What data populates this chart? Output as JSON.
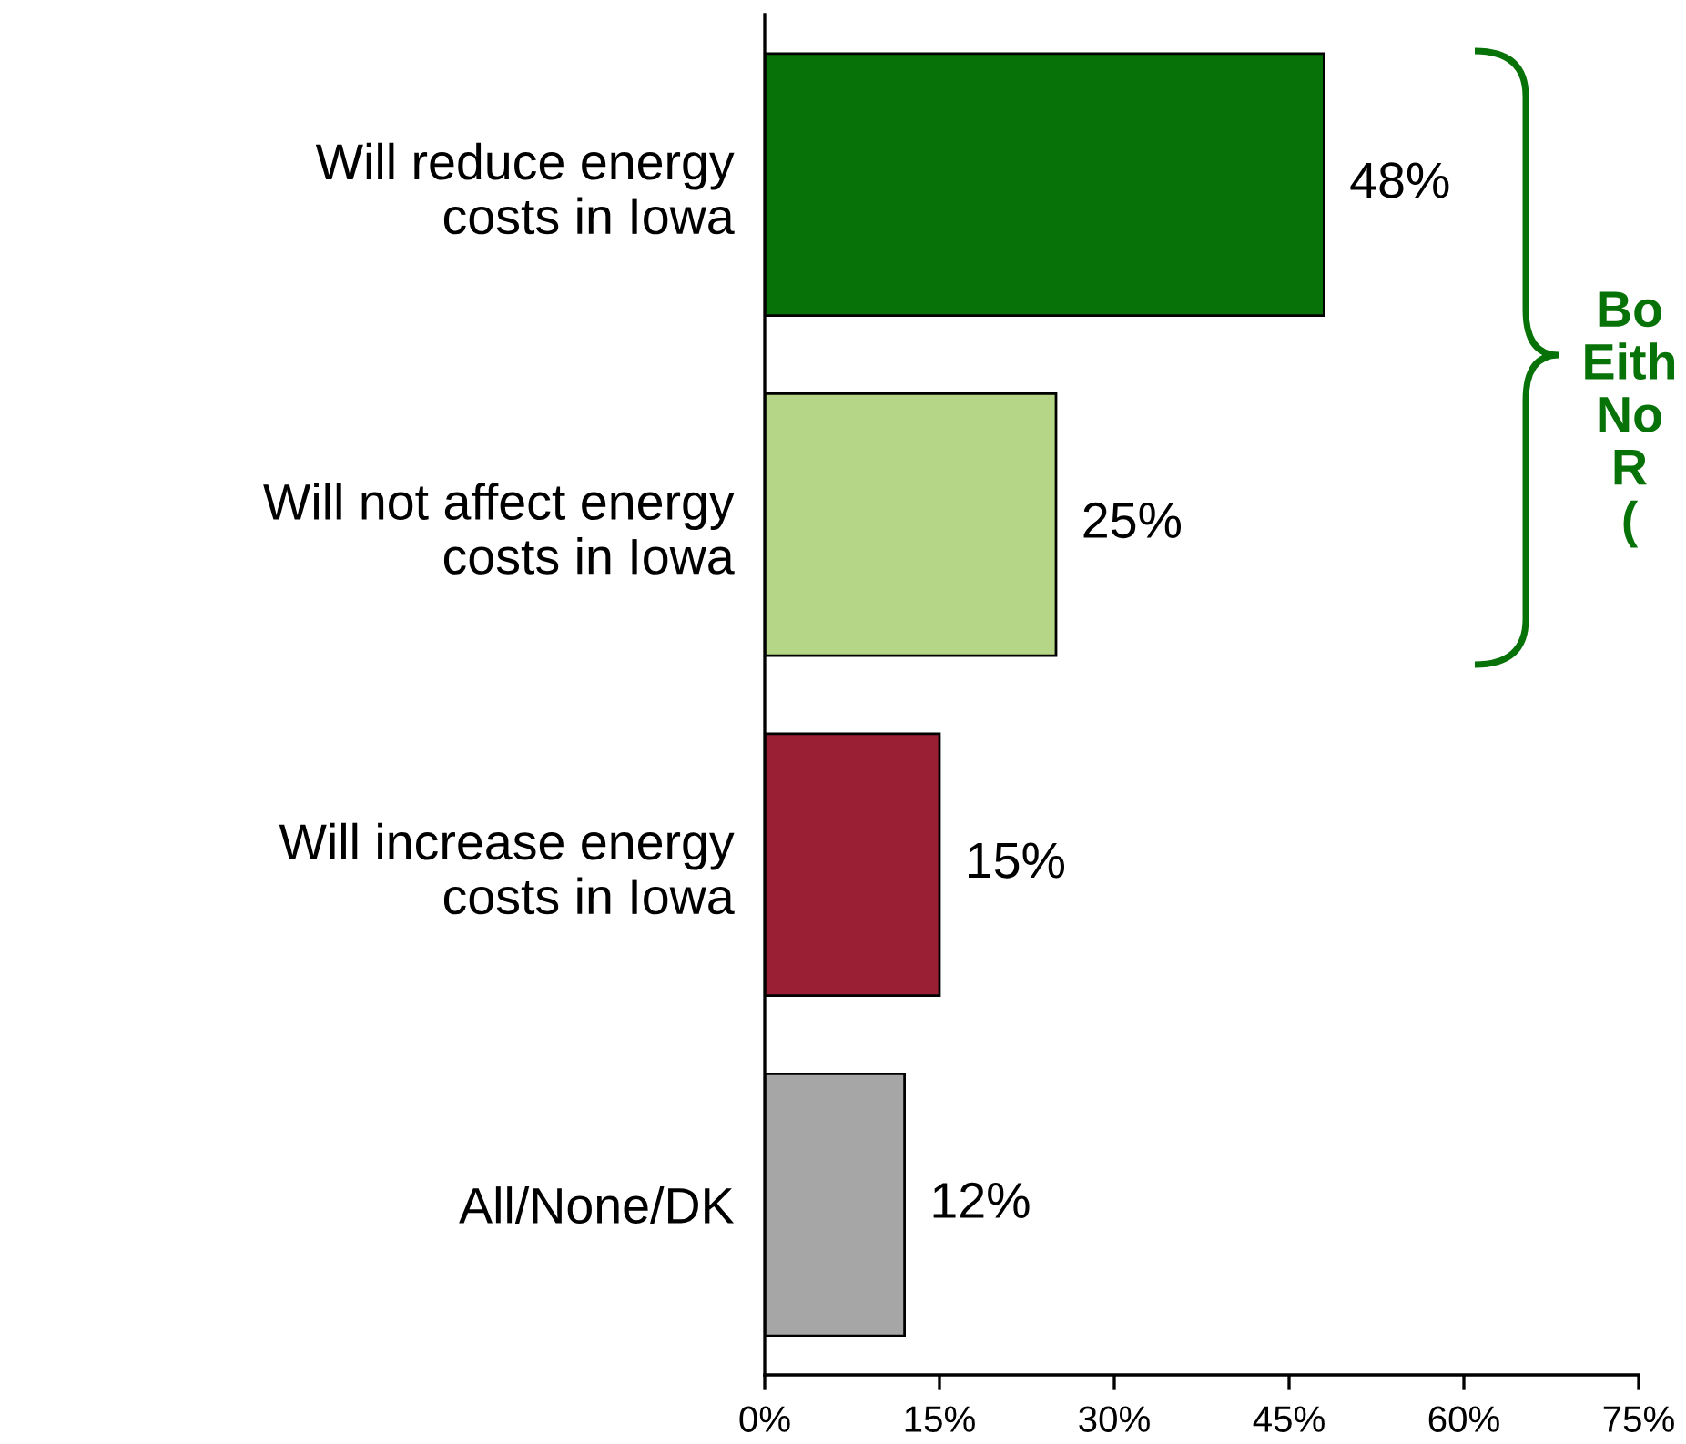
{
  "chart_data": {
    "type": "bar",
    "orientation": "horizontal",
    "categories": [
      "Will reduce energy\ncosts in Iowa",
      "Will not affect energy\ncosts in Iowa",
      "Will increase energy\ncosts in Iowa",
      "All/None/DK"
    ],
    "values": [
      48,
      25,
      15,
      12
    ],
    "colors": [
      "#077207",
      "#b5d686",
      "#9a1f35",
      "#a6a6a6"
    ],
    "value_labels": [
      "48%",
      "25%",
      "15%",
      "12%"
    ],
    "xlim": [
      0,
      75
    ],
    "xticks": [
      {
        "value": 0,
        "label": "0%"
      },
      {
        "value": 15,
        "label": "15%"
      },
      {
        "value": 30,
        "label": "30%"
      },
      {
        "value": 45,
        "label": "45%"
      },
      {
        "value": 60,
        "label": "60%"
      },
      {
        "value": 75,
        "label": "75%"
      }
    ],
    "grid": false,
    "legend": false,
    "annotations": [
      "Bo\nEith\nNo\nR\n("
    ]
  }
}
